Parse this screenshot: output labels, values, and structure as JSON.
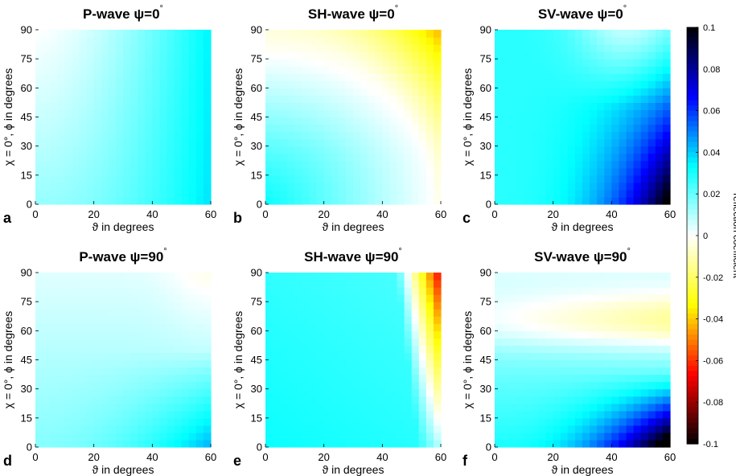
{
  "chart_data": {
    "type": "heatmap",
    "colormap": [
      "#000000",
      "#0000ff",
      "#00ffff",
      "#ffffff",
      "#ffff00",
      "#ff0000",
      "#000000"
    ],
    "colorbar": {
      "label": "reflection coefficient",
      "range": [
        -0.1,
        0.1
      ],
      "ticks": [
        "0.1",
        "0.08",
        "0.06",
        "0.04",
        "0.02",
        "0",
        "-0.02",
        "-0.04",
        "-0.06",
        "-0.08",
        "-0.1"
      ],
      "tick_values": [
        0.1,
        0.08,
        0.06,
        0.04,
        0.02,
        0,
        -0.02,
        -0.04,
        -0.06,
        -0.08,
        -0.1
      ]
    },
    "x_axis": {
      "label": "ϑ in degrees",
      "range": [
        0,
        60
      ],
      "ticks": [
        "0",
        "20",
        "40",
        "60"
      ],
      "tick_values": [
        0,
        20,
        40,
        60
      ]
    },
    "y_axis": {
      "label": "χ = 0°, ϕ in degrees",
      "range": [
        0,
        90
      ],
      "ticks": [
        "0",
        "15",
        "30",
        "45",
        "60",
        "75",
        "90"
      ],
      "tick_values": [
        0,
        15,
        30,
        45,
        60,
        75,
        90
      ]
    },
    "panels": [
      {
        "letter": "a",
        "title": "P-wave ψ=0",
        "title_sup": "°",
        "model": "p0"
      },
      {
        "letter": "b",
        "title": "SH-wave ψ=0",
        "title_sup": "°",
        "model": "sh0"
      },
      {
        "letter": "c",
        "title": "SV-wave ψ=0",
        "title_sup": "°",
        "model": "sv0"
      },
      {
        "letter": "d",
        "title": "P-wave ψ=90",
        "title_sup": "°",
        "model": "p90"
      },
      {
        "letter": "e",
        "title": "SH-wave ψ=90",
        "title_sup": "°",
        "model": "sh90"
      },
      {
        "letter": "f",
        "title": "SV-wave ψ=90",
        "title_sup": "°",
        "model": "sv90"
      }
    ]
  }
}
